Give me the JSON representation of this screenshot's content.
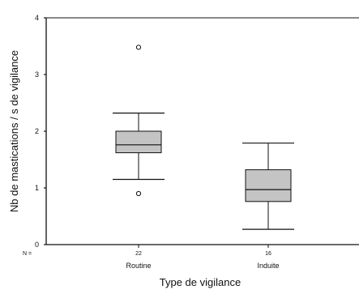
{
  "chart_data": {
    "type": "boxplot",
    "xlabel": "Type de vigilance",
    "ylabel": "Nb de mastications / s de vigilance",
    "ylim": [
      0,
      4
    ],
    "yticks": [
      "0",
      "1",
      "2",
      "3",
      "4"
    ],
    "n_prefix": "N =",
    "grid": false,
    "box_color": "#c4c4c4",
    "series": [
      {
        "category": "Routine",
        "n": "22",
        "whisker_low": 1.15,
        "q1": 1.62,
        "median": 1.76,
        "q3": 2.0,
        "whisker_high": 2.32,
        "outliers": [
          3.48,
          0.9
        ]
      },
      {
        "category": "Induite",
        "n": "16",
        "whisker_low": 0.27,
        "q1": 0.76,
        "median": 0.97,
        "q3": 1.32,
        "whisker_high": 1.79,
        "outliers": []
      }
    ]
  }
}
